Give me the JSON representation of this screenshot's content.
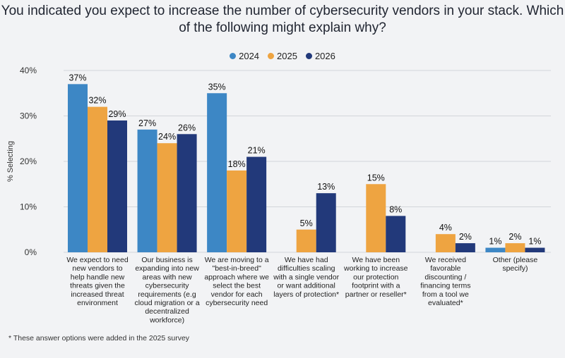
{
  "chart_data": {
    "type": "bar",
    "title": "You indicated you expect to increase the number of cybersecurity vendors in your stack. Which of the following might explain why?",
    "ylabel": "% Selecting",
    "xlabel": "",
    "ylim": [
      0,
      40
    ],
    "yticks": [
      "0%",
      "10%",
      "20%",
      "30%",
      "40%"
    ],
    "grid": true,
    "legend_position": "top-center",
    "categories": [
      [
        "We expect to need",
        "new vendors to",
        "help handle new",
        "threats given the",
        "increased threat",
        "environment"
      ],
      [
        "Our business is",
        "expanding into new",
        "areas with new",
        "cybersecurity",
        "requirements (e.g",
        "cloud migration or a",
        "decentralized",
        "workforce)"
      ],
      [
        "We are moving to a",
        "\"best-in-breed\"",
        "approach where we",
        "select the best",
        "vendor for each",
        "cybersecurity need"
      ],
      [
        "We have had",
        "difficulties scaling",
        "with a single vendor",
        "or want additional",
        "layers of protection*"
      ],
      [
        "We have been",
        "working to increase",
        "our protection",
        "footprint with a",
        "partner or reseller*"
      ],
      [
        "We received",
        "favorable",
        "discounting /",
        "financing terms",
        "from a tool we",
        "evaluated*"
      ],
      [
        "Other (please",
        "specify)"
      ]
    ],
    "series": [
      {
        "name": "2024",
        "color": "#3d87c5",
        "values": [
          37,
          27,
          35,
          null,
          null,
          null,
          1
        ]
      },
      {
        "name": "2025",
        "color": "#eea441",
        "values": [
          32,
          24,
          18,
          5,
          15,
          4,
          2
        ]
      },
      {
        "name": "2026",
        "color": "#22397a",
        "values": [
          29,
          26,
          21,
          13,
          8,
          2,
          1
        ]
      }
    ],
    "value_suffix": "%"
  },
  "footnote": "* These answer options were added in the 2025 survey"
}
